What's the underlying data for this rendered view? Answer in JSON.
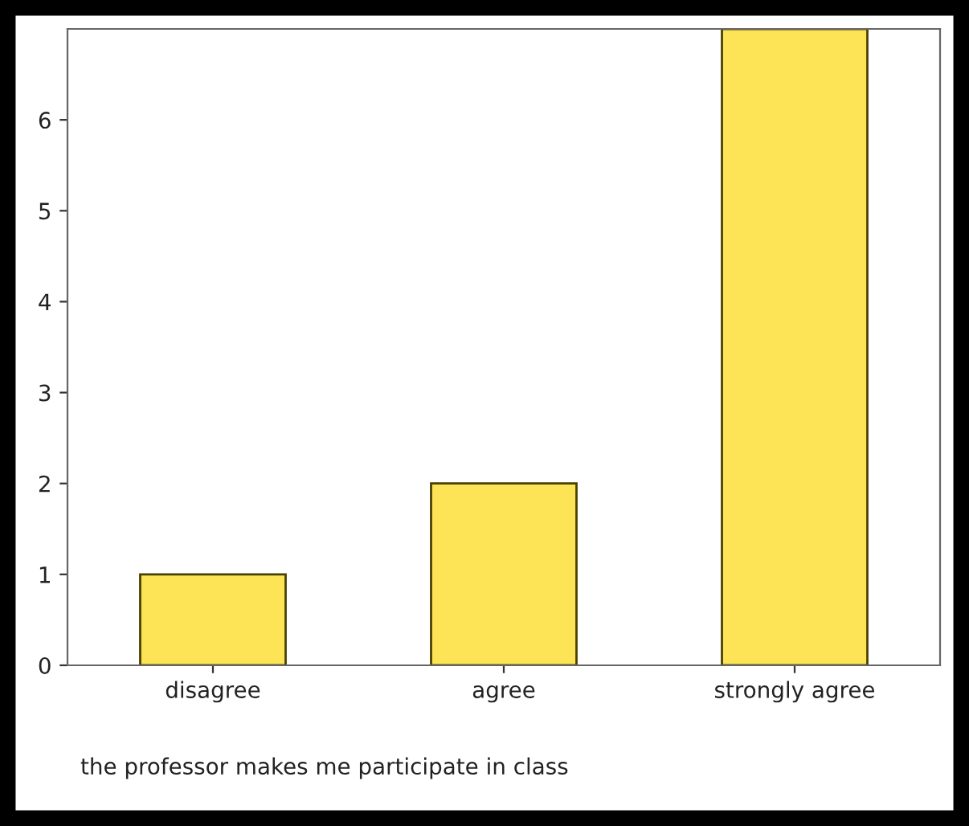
{
  "chart_data": {
    "type": "bar",
    "xlabel": "the professor makes me participate in class",
    "categories": [
      "disagree",
      "agree",
      "strongly agree"
    ],
    "values": [
      1,
      2,
      7
    ],
    "color": "#fde456",
    "ylim": [
      0,
      7
    ],
    "yticks": [
      0,
      1,
      2,
      3,
      4,
      5,
      6
    ],
    "grid": false,
    "legend": false
  }
}
